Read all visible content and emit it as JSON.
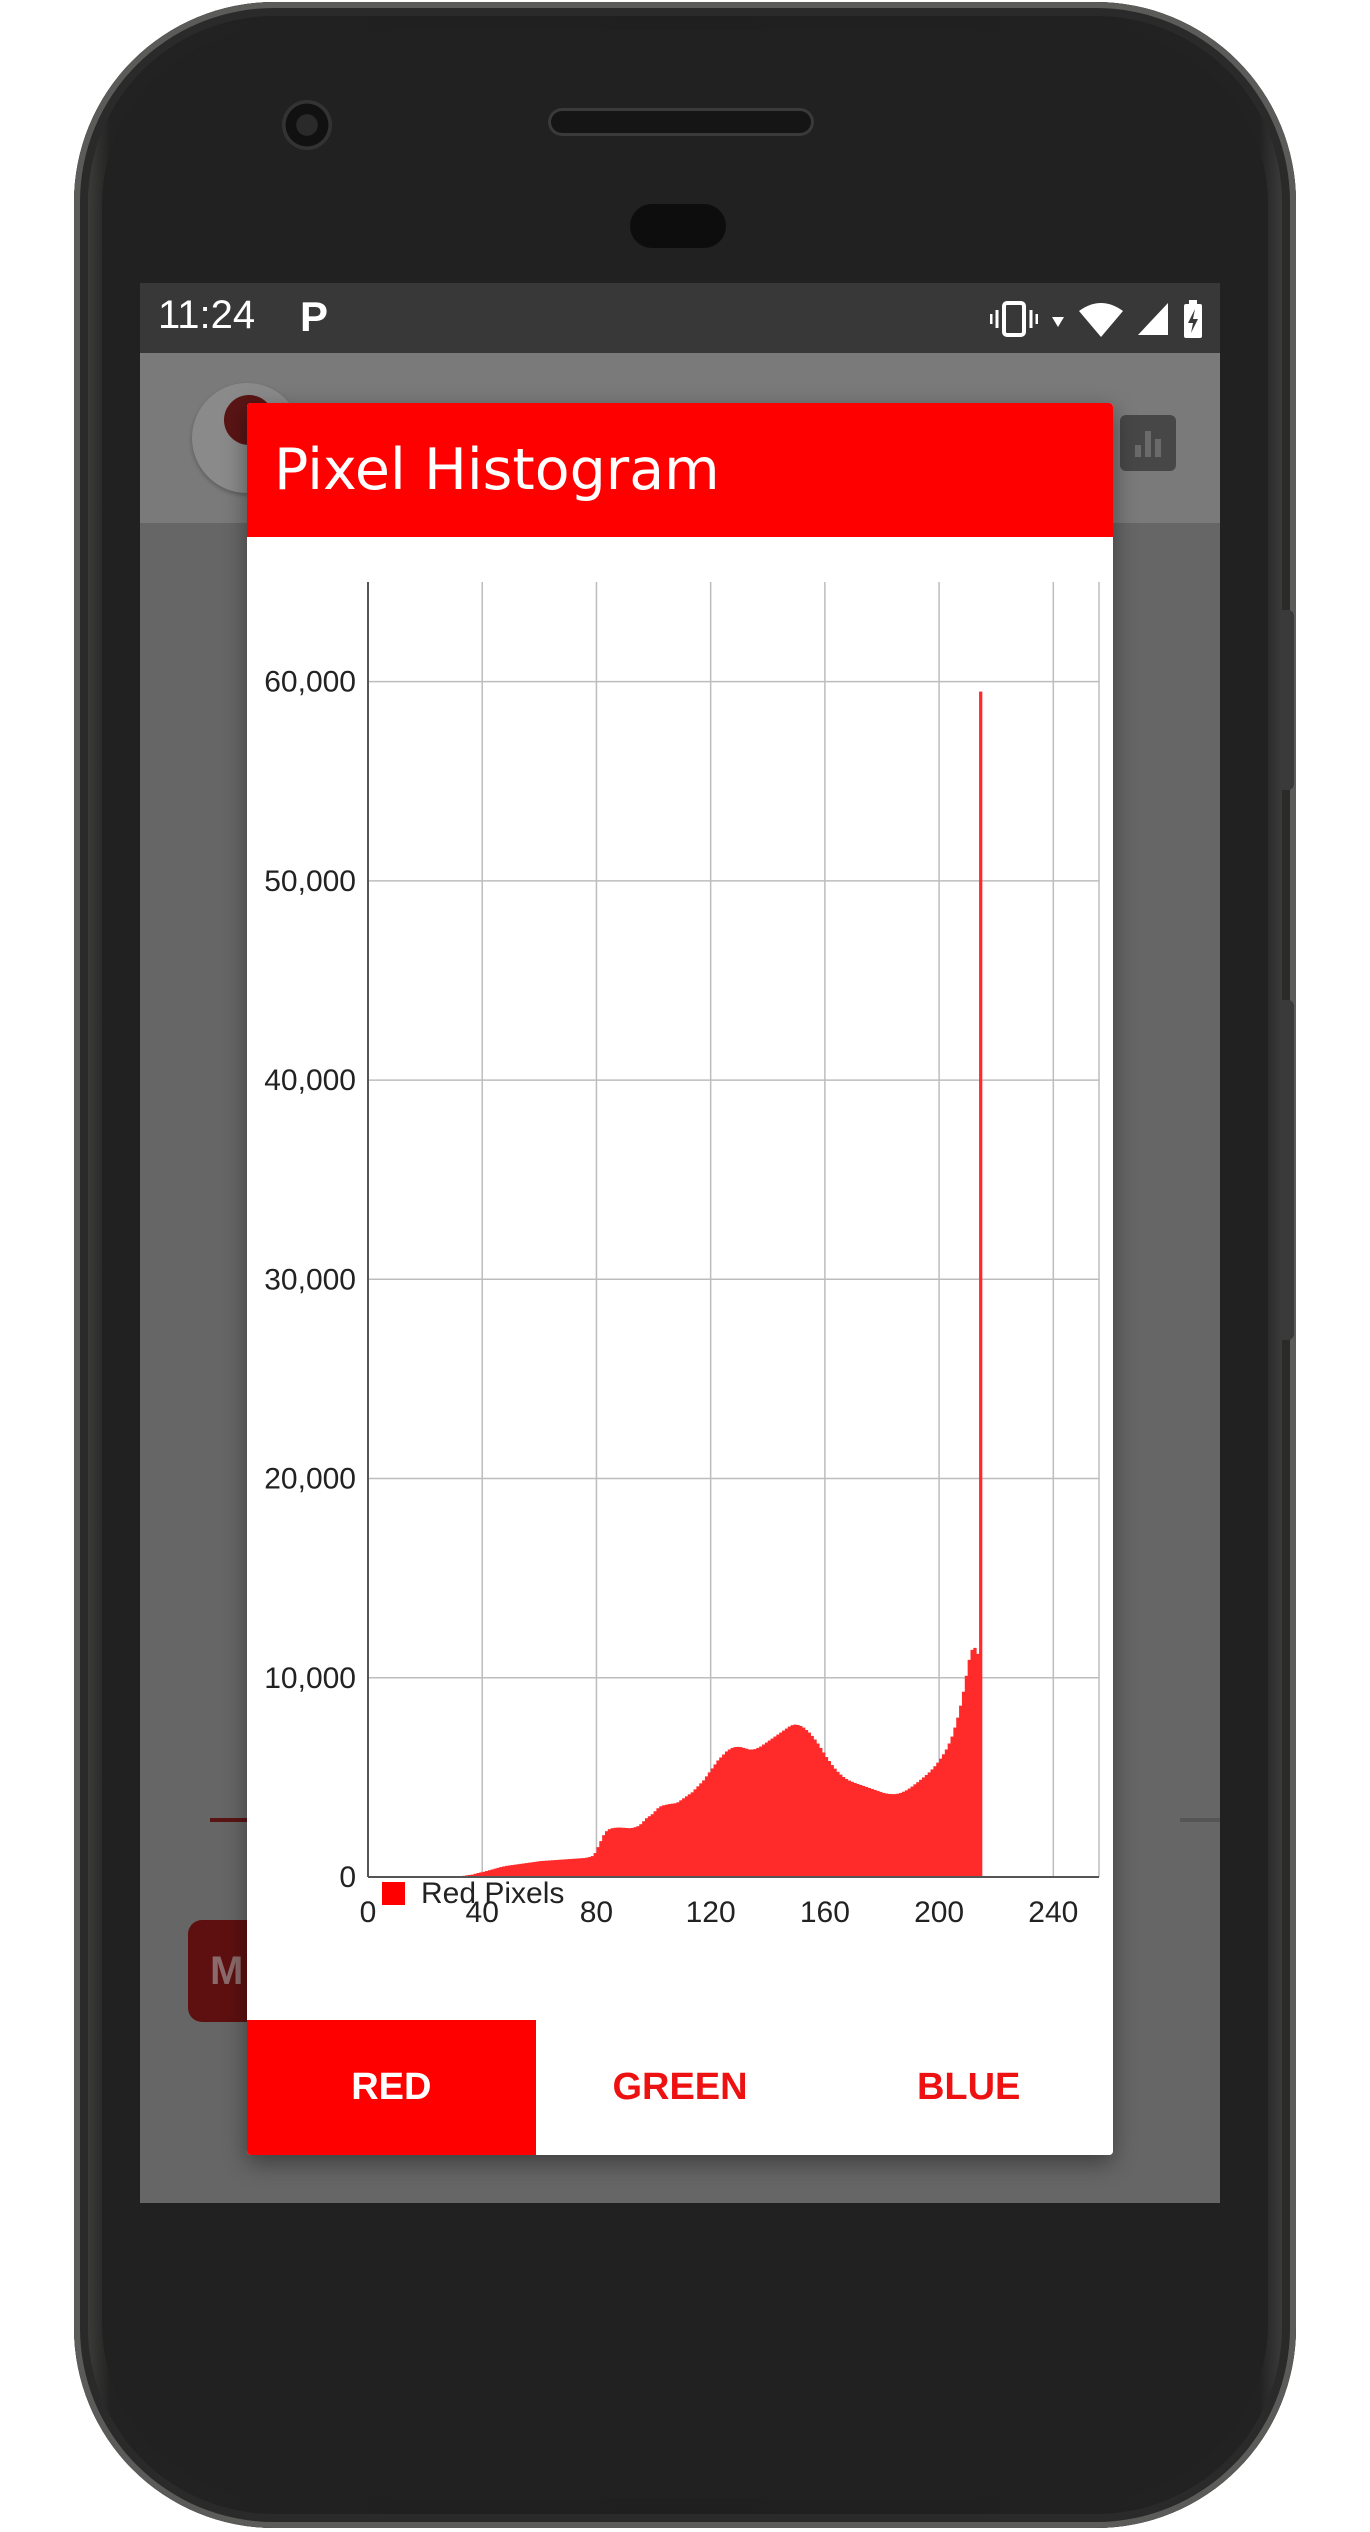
{
  "status_bar": {
    "time": "11:24",
    "notification_glyph": "P",
    "icons": [
      "vibrate-icon",
      "wifi-icon",
      "signal-icon",
      "battery-charging-icon"
    ]
  },
  "background_app": {
    "chip_text": "M"
  },
  "dialog": {
    "title": "Pixel Histogram",
    "tabs": [
      {
        "label": "RED",
        "active": true
      },
      {
        "label": "GREEN",
        "active": false
      },
      {
        "label": "BLUE",
        "active": false
      }
    ]
  },
  "colors": {
    "accent": "#ff0000",
    "bar_fill": "#ff2a2a",
    "grid": "#bdbdbd",
    "scrim": "#666666"
  },
  "chart_data": {
    "type": "bar",
    "title": "",
    "xlabel": "",
    "ylabel": "",
    "xlim": [
      0,
      256
    ],
    "ylim": [
      0,
      65000
    ],
    "x_ticks": [
      "0",
      "40",
      "80",
      "120",
      "160",
      "200",
      "240"
    ],
    "y_ticks": [
      "0",
      "10,000",
      "20,000",
      "30,000",
      "40,000",
      "50,000",
      "60,000"
    ],
    "grid": true,
    "legend_position": "bottom-left",
    "series": [
      {
        "name": "Red Pixels",
        "color": "#ff0000",
        "x_start": 0,
        "values": [
          0,
          0,
          0,
          0,
          0,
          0,
          0,
          0,
          0,
          0,
          0,
          0,
          0,
          0,
          0,
          0,
          0,
          0,
          0,
          0,
          0,
          0,
          0,
          0,
          0,
          0,
          0,
          0,
          0,
          0,
          10,
          20,
          40,
          60,
          80,
          100,
          120,
          160,
          200,
          230,
          260,
          300,
          340,
          380,
          420,
          460,
          500,
          530,
          560,
          580,
          600,
          620,
          640,
          660,
          680,
          700,
          720,
          740,
          760,
          780,
          800,
          810,
          820,
          830,
          840,
          850,
          860,
          870,
          880,
          890,
          900,
          910,
          920,
          930,
          940,
          950,
          970,
          1000,
          1050,
          1200,
          1500,
          1800,
          2100,
          2300,
          2400,
          2450,
          2470,
          2480,
          2480,
          2470,
          2460,
          2450,
          2460,
          2500,
          2550,
          2650,
          2800,
          2950,
          3050,
          3150,
          3300,
          3450,
          3550,
          3600,
          3630,
          3660,
          3680,
          3700,
          3750,
          3850,
          3950,
          4050,
          4150,
          4250,
          4400,
          4550,
          4700,
          4850,
          5050,
          5250,
          5450,
          5650,
          5850,
          6000,
          6150,
          6300,
          6400,
          6480,
          6520,
          6530,
          6520,
          6480,
          6440,
          6400,
          6400,
          6420,
          6480,
          6550,
          6650,
          6750,
          6850,
          6950,
          7050,
          7150,
          7250,
          7350,
          7450,
          7550,
          7620,
          7650,
          7630,
          7580,
          7500,
          7380,
          7250,
          7080,
          6900,
          6700,
          6480,
          6250,
          6020,
          5820,
          5620,
          5440,
          5280,
          5140,
          5020,
          4920,
          4840,
          4780,
          4720,
          4670,
          4620,
          4570,
          4520,
          4470,
          4420,
          4370,
          4320,
          4270,
          4220,
          4190,
          4170,
          4160,
          4160,
          4180,
          4220,
          4280,
          4350,
          4440,
          4540,
          4650,
          4760,
          4880,
          5000,
          5120,
          5250,
          5400,
          5560,
          5740,
          5940,
          6160,
          6400,
          6700,
          7050,
          7500,
          8000,
          8600,
          9300,
          10100,
          10900,
          11400,
          11500,
          11200,
          59500
        ]
      }
    ]
  }
}
